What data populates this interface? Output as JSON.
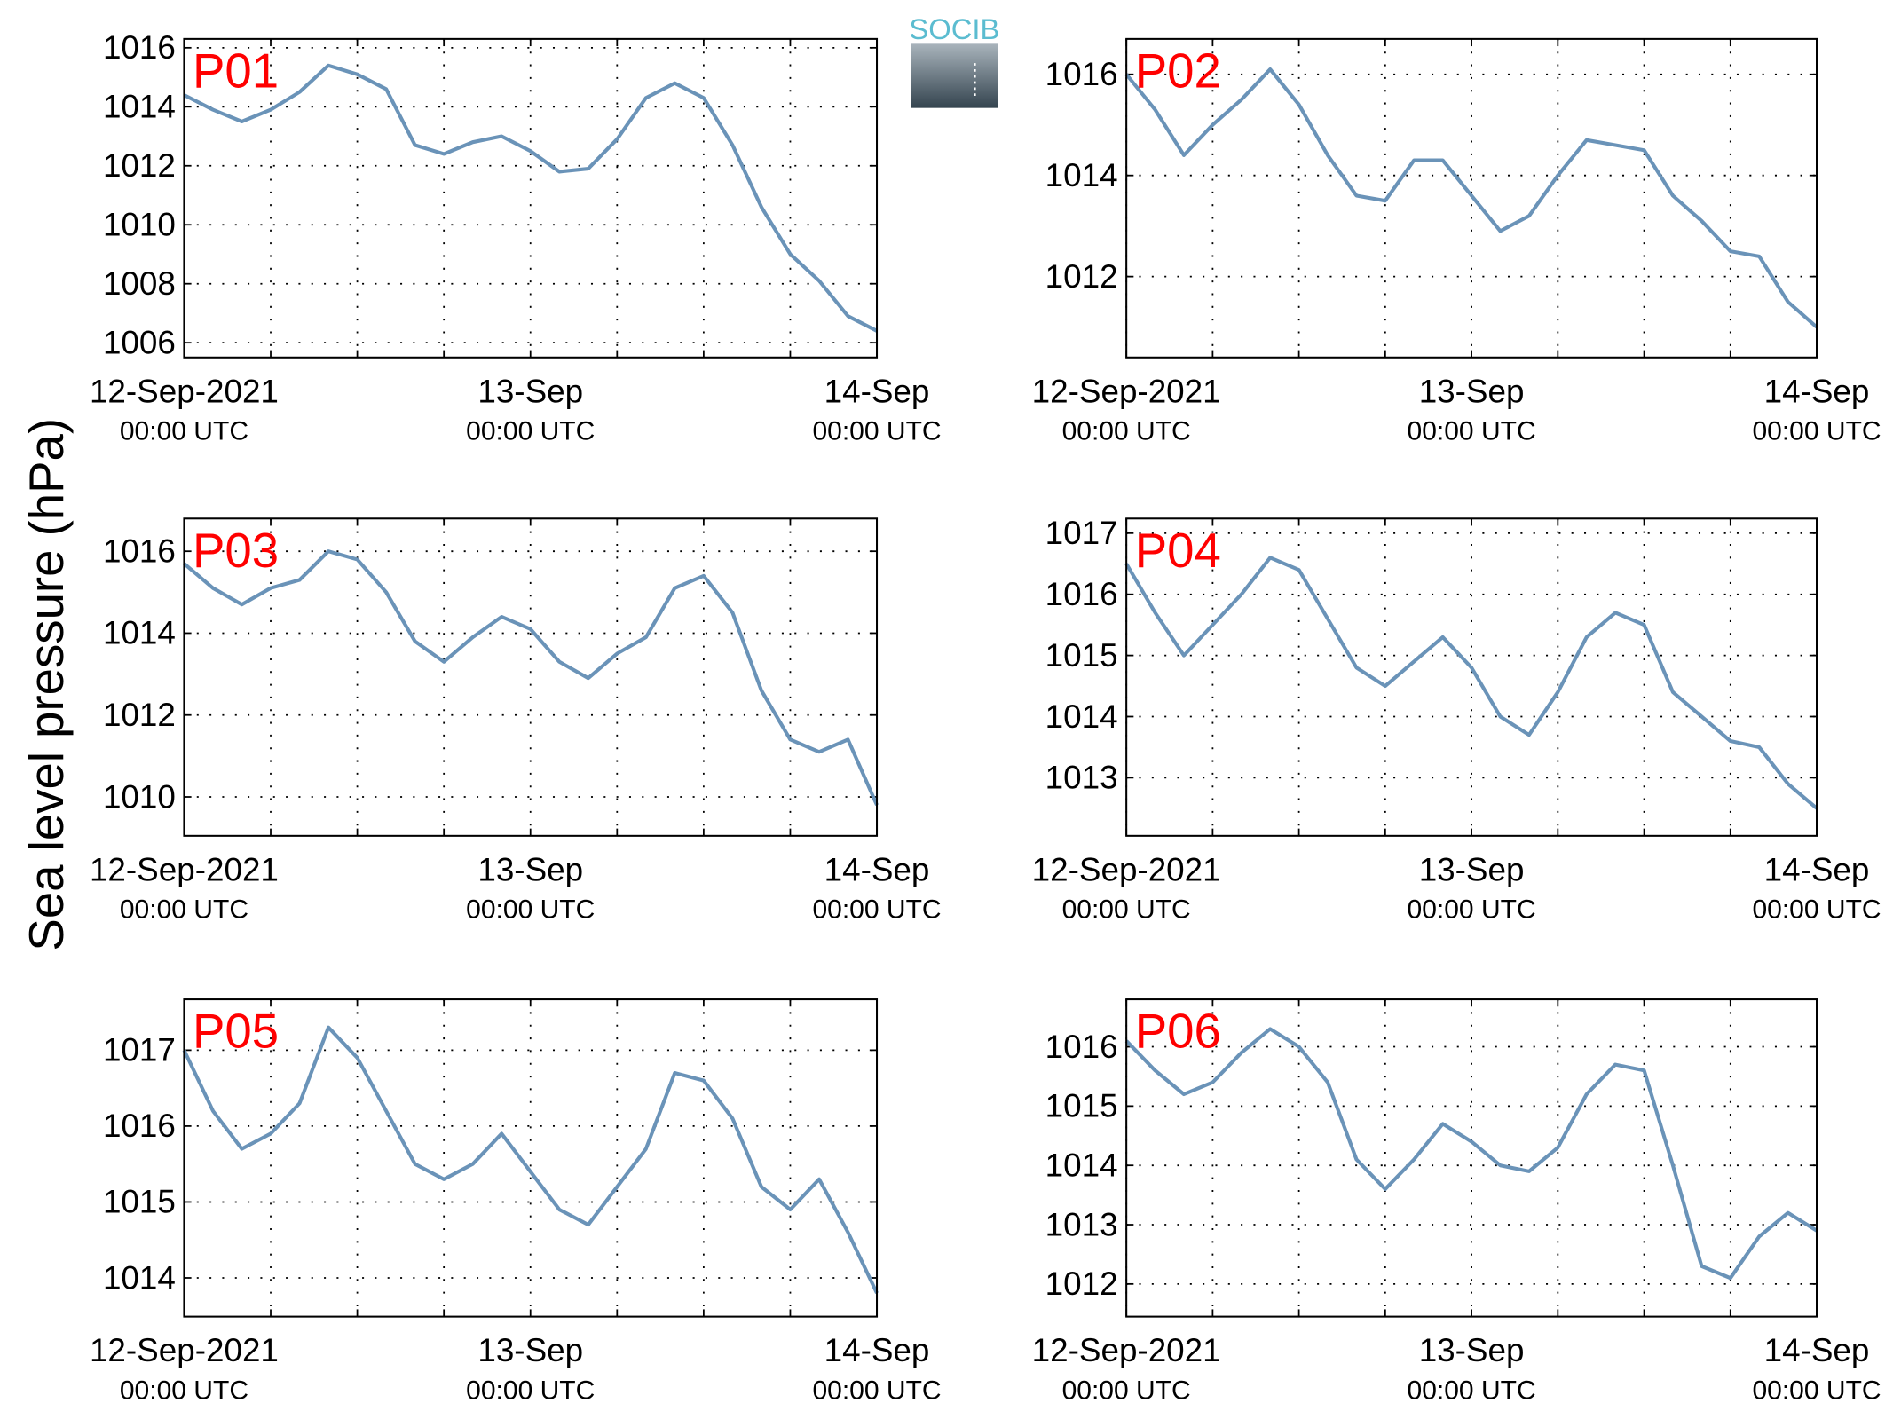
{
  "ylabel": "Sea level pressure (hPa)",
  "logo_text": "SOCIB",
  "chart_data": [
    {
      "type": "line",
      "title": "P01",
      "grid": true,
      "x": [
        0,
        2,
        4,
        6,
        8,
        10,
        12,
        14,
        16,
        18,
        20,
        22,
        24,
        26,
        28,
        30,
        32,
        34,
        36,
        38,
        40,
        42,
        44,
        46,
        48
      ],
      "series": [
        {
          "color": "#6a93b8",
          "values": [
            1014.4,
            1013.9,
            1013.5,
            1013.9,
            1014.5,
            1015.4,
            1015.1,
            1014.6,
            1012.7,
            1012.4,
            1012.8,
            1013.0,
            1012.5,
            1011.8,
            1011.9,
            1012.9,
            1014.3,
            1014.8,
            1014.3,
            1012.7,
            1010.6,
            1009.0,
            1008.1,
            1006.9,
            1006.4
          ]
        }
      ],
      "xlim": [
        0,
        48
      ],
      "xticks": [
        {
          "value": 0,
          "label": [
            "12-Sep-2021",
            "00:00 UTC"
          ]
        },
        {
          "value": 24,
          "label": [
            "13-Sep",
            "00:00 UTC"
          ]
        },
        {
          "value": 48,
          "label": [
            "14-Sep",
            "00:00 UTC"
          ]
        }
      ],
      "xminorticks": [
        6,
        12,
        18,
        30,
        36,
        42
      ],
      "ylim": [
        1005.5,
        1016.3
      ],
      "yticks": [
        1006,
        1008,
        1010,
        1012,
        1014,
        1016
      ]
    },
    {
      "type": "line",
      "title": "P02",
      "grid": true,
      "x": [
        0,
        2,
        4,
        6,
        8,
        10,
        12,
        14,
        16,
        18,
        20,
        22,
        24,
        26,
        28,
        30,
        32,
        34,
        36,
        38,
        40,
        42,
        44,
        46,
        48
      ],
      "series": [
        {
          "color": "#6a93b8",
          "values": [
            1016.0,
            1015.3,
            1014.4,
            1015.0,
            1015.5,
            1016.1,
            1015.4,
            1014.4,
            1013.6,
            1013.5,
            1014.3,
            1014.3,
            1013.6,
            1012.9,
            1013.2,
            1014.0,
            1014.7,
            1014.6,
            1014.5,
            1013.6,
            1013.1,
            1012.5,
            1012.4,
            1011.5,
            1011.0
          ]
        }
      ],
      "xlim": [
        0,
        48
      ],
      "xticks": [
        {
          "value": 0,
          "label": [
            "12-Sep-2021",
            "00:00 UTC"
          ]
        },
        {
          "value": 24,
          "label": [
            "13-Sep",
            "00:00 UTC"
          ]
        },
        {
          "value": 48,
          "label": [
            "14-Sep",
            "00:00 UTC"
          ]
        }
      ],
      "xminorticks": [
        6,
        12,
        18,
        30,
        36,
        42
      ],
      "ylim": [
        1010.4,
        1016.7
      ],
      "yticks": [
        1012,
        1014,
        1016
      ]
    },
    {
      "type": "line",
      "title": "P03",
      "grid": true,
      "x": [
        0,
        2,
        4,
        6,
        8,
        10,
        12,
        14,
        16,
        18,
        20,
        22,
        24,
        26,
        28,
        30,
        32,
        34,
        36,
        38,
        40,
        42,
        44,
        46,
        48
      ],
      "series": [
        {
          "color": "#6a93b8",
          "values": [
            1015.7,
            1015.1,
            1014.7,
            1015.1,
            1015.3,
            1016.0,
            1015.8,
            1015.0,
            1013.8,
            1013.3,
            1013.9,
            1014.4,
            1014.1,
            1013.3,
            1012.9,
            1013.5,
            1013.9,
            1015.1,
            1015.4,
            1014.5,
            1012.6,
            1011.4,
            1011.1,
            1011.4,
            1009.8
          ]
        }
      ],
      "xlim": [
        0,
        48
      ],
      "xticks": [
        {
          "value": 0,
          "label": [
            "12-Sep-2021",
            "00:00 UTC"
          ]
        },
        {
          "value": 24,
          "label": [
            "13-Sep",
            "00:00 UTC"
          ]
        },
        {
          "value": 48,
          "label": [
            "14-Sep",
            "00:00 UTC"
          ]
        }
      ],
      "xminorticks": [
        6,
        12,
        18,
        30,
        36,
        42
      ],
      "ylim": [
        1009.05,
        1016.8
      ],
      "yticks": [
        1010,
        1012,
        1014,
        1016
      ]
    },
    {
      "type": "line",
      "title": "P04",
      "grid": true,
      "x": [
        0,
        2,
        4,
        6,
        8,
        10,
        12,
        14,
        16,
        18,
        20,
        22,
        24,
        26,
        28,
        30,
        32,
        34,
        36,
        38,
        40,
        42,
        44,
        46,
        48
      ],
      "series": [
        {
          "color": "#6a93b8",
          "values": [
            1016.5,
            1015.7,
            1015.0,
            1015.5,
            1016.0,
            1016.6,
            1016.4,
            1015.6,
            1014.8,
            1014.5,
            1014.9,
            1015.3,
            1014.8,
            1014.0,
            1013.7,
            1014.4,
            1015.3,
            1015.7,
            1015.5,
            1014.4,
            1014.0,
            1013.6,
            1013.5,
            1012.9,
            1012.5
          ]
        }
      ],
      "xlim": [
        0,
        48
      ],
      "xticks": [
        {
          "value": 0,
          "label": [
            "12-Sep-2021",
            "00:00 UTC"
          ]
        },
        {
          "value": 24,
          "label": [
            "13-Sep",
            "00:00 UTC"
          ]
        },
        {
          "value": 48,
          "label": [
            "14-Sep",
            "00:00 UTC"
          ]
        }
      ],
      "xminorticks": [
        6,
        12,
        18,
        30,
        36,
        42
      ],
      "ylim": [
        1012.05,
        1017.24
      ],
      "yticks": [
        1013,
        1014,
        1015,
        1016,
        1017
      ]
    },
    {
      "type": "line",
      "title": "P05",
      "grid": true,
      "x": [
        0,
        2,
        4,
        6,
        8,
        10,
        12,
        14,
        16,
        18,
        20,
        22,
        24,
        26,
        28,
        30,
        32,
        34,
        36,
        38,
        40,
        42,
        44,
        46,
        48
      ],
      "series": [
        {
          "color": "#6a93b8",
          "values": [
            1017.0,
            1016.2,
            1015.7,
            1015.9,
            1016.3,
            1017.3,
            1016.9,
            1016.2,
            1015.5,
            1015.3,
            1015.5,
            1015.9,
            1015.4,
            1014.9,
            1014.7,
            1015.2,
            1015.7,
            1016.7,
            1016.6,
            1016.1,
            1015.2,
            1014.9,
            1015.3,
            1014.6,
            1013.8
          ]
        }
      ],
      "xlim": [
        0,
        48
      ],
      "xticks": [
        {
          "value": 0,
          "label": [
            "12-Sep-2021",
            "00:00 UTC"
          ]
        },
        {
          "value": 24,
          "label": [
            "13-Sep",
            "00:00 UTC"
          ]
        },
        {
          "value": 48,
          "label": [
            "14-Sep",
            "00:00 UTC"
          ]
        }
      ],
      "xminorticks": [
        6,
        12,
        18,
        30,
        36,
        42
      ],
      "ylim": [
        1013.49,
        1017.67
      ],
      "yticks": [
        1014,
        1015,
        1016,
        1017
      ]
    },
    {
      "type": "line",
      "title": "P06",
      "grid": true,
      "x": [
        0,
        2,
        4,
        6,
        8,
        10,
        12,
        14,
        16,
        18,
        20,
        22,
        24,
        26,
        28,
        30,
        32,
        34,
        36,
        38,
        40,
        42,
        44,
        46,
        48
      ],
      "series": [
        {
          "color": "#6a93b8",
          "values": [
            1016.1,
            1015.6,
            1015.2,
            1015.4,
            1015.9,
            1016.3,
            1016.0,
            1015.4,
            1014.1,
            1013.6,
            1014.1,
            1014.7,
            1014.4,
            1014.0,
            1013.9,
            1014.3,
            1015.2,
            1015.7,
            1015.6,
            1014.0,
            1012.3,
            1012.1,
            1012.8,
            1013.2,
            1012.9
          ]
        }
      ],
      "xlim": [
        0,
        48
      ],
      "xticks": [
        {
          "value": 0,
          "label": [
            "12-Sep-2021",
            "00:00 UTC"
          ]
        },
        {
          "value": 24,
          "label": [
            "13-Sep",
            "00:00 UTC"
          ]
        },
        {
          "value": 48,
          "label": [
            "14-Sep",
            "00:00 UTC"
          ]
        }
      ],
      "xminorticks": [
        6,
        12,
        18,
        30,
        36,
        42
      ],
      "ylim": [
        1011.45,
        1016.8
      ],
      "yticks": [
        1012,
        1013,
        1014,
        1015,
        1016
      ]
    }
  ]
}
